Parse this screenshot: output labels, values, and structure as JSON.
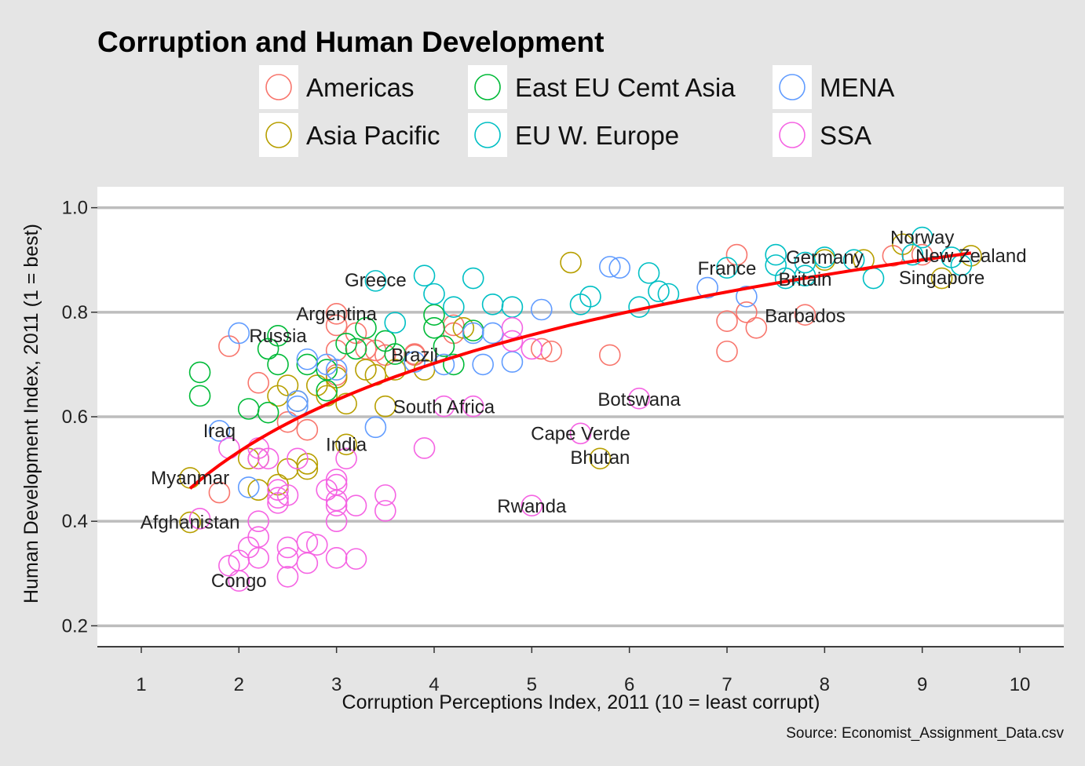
{
  "chart_data": {
    "type": "scatter",
    "title": "Corruption and Human Development",
    "xlabel": "Corruption Perceptions Index, 2011 (10 = least corrupt)",
    "ylabel": "Human Development Index, 2011 (1 = best)",
    "caption": "Source: Economist_Assignment_Data.csv",
    "xlim": [
      0.55,
      10.45
    ],
    "ylim": [
      0.16,
      1.04
    ],
    "xticks": [
      1,
      2,
      3,
      4,
      5,
      6,
      7,
      8,
      9,
      10
    ],
    "yticks": [
      0.2,
      0.4,
      0.6,
      0.8,
      1.0
    ],
    "ytick_labels": [
      "0.2",
      "0.4",
      "0.6",
      "0.8",
      "1.0"
    ],
    "grid": "horizontal",
    "legend_position": "top",
    "legend_rows": [
      [
        "Americas",
        "East EU Cemt Asia",
        "MENA"
      ],
      [
        "Asia Pacific",
        "EU W. Europe",
        "SSA"
      ]
    ],
    "colors": {
      "Americas": "#F8766D",
      "Asia Pacific": "#B79F00",
      "East EU Cemt Asia": "#00BA38",
      "EU W. Europe": "#00BFC4",
      "MENA": "#619CFF",
      "SSA": "#F564E3",
      "trend": "#FF0000"
    },
    "series": [
      {
        "name": "Americas",
        "points": [
          [
            1.9,
            0.735
          ],
          [
            2.2,
            0.665
          ],
          [
            3.0,
            0.797
          ],
          [
            3.0,
            0.775
          ],
          [
            3.2,
            0.76
          ],
          [
            3.0,
            0.727
          ],
          [
            3.0,
            0.68
          ],
          [
            2.7,
            0.575
          ],
          [
            2.5,
            0.59
          ],
          [
            1.8,
            0.455
          ],
          [
            3.4,
            0.727
          ],
          [
            3.5,
            0.718
          ],
          [
            3.8,
            0.718
          ],
          [
            3.8,
            0.72
          ],
          [
            4.2,
            0.775
          ],
          [
            4.2,
            0.76
          ],
          [
            5.1,
            0.73
          ],
          [
            5.2,
            0.725
          ],
          [
            5.8,
            0.718
          ],
          [
            7.0,
            0.783
          ],
          [
            7.0,
            0.725
          ],
          [
            7.1,
            0.91
          ],
          [
            7.3,
            0.77
          ],
          [
            7.2,
            0.8
          ],
          [
            7.8,
            0.795
          ],
          [
            8.7,
            0.908
          ],
          [
            9.0,
            0.91
          ],
          [
            3.3,
            0.73
          ]
        ]
      },
      {
        "name": "Asia Pacific",
        "points": [
          [
            1.5,
            0.483
          ],
          [
            1.5,
            0.398
          ],
          [
            2.1,
            0.52
          ],
          [
            2.2,
            0.46
          ],
          [
            2.2,
            0.52
          ],
          [
            2.4,
            0.47
          ],
          [
            2.5,
            0.5
          ],
          [
            2.5,
            0.66
          ],
          [
            2.6,
            0.63
          ],
          [
            2.7,
            0.51
          ],
          [
            2.7,
            0.5
          ],
          [
            2.8,
            0.66
          ],
          [
            2.9,
            0.64
          ],
          [
            3.0,
            0.675
          ],
          [
            3.1,
            0.625
          ],
          [
            3.1,
            0.547
          ],
          [
            3.3,
            0.69
          ],
          [
            3.4,
            0.68
          ],
          [
            3.5,
            0.62
          ],
          [
            3.6,
            0.69
          ],
          [
            3.9,
            0.69
          ],
          [
            4.3,
            0.77
          ],
          [
            5.4,
            0.895
          ],
          [
            5.7,
            0.52
          ],
          [
            8.4,
            0.9
          ],
          [
            8.8,
            0.93
          ],
          [
            9.2,
            0.865
          ],
          [
            9.5,
            0.908
          ],
          [
            8.0,
            0.9
          ],
          [
            2.4,
            0.64
          ]
        ]
      },
      {
        "name": "East EU Cemt Asia",
        "points": [
          [
            1.6,
            0.685
          ],
          [
            1.6,
            0.64
          ],
          [
            2.1,
            0.615
          ],
          [
            2.3,
            0.608
          ],
          [
            2.3,
            0.73
          ],
          [
            2.4,
            0.755
          ],
          [
            2.4,
            0.7
          ],
          [
            2.7,
            0.7
          ],
          [
            2.9,
            0.69
          ],
          [
            2.9,
            0.65
          ],
          [
            3.1,
            0.74
          ],
          [
            3.2,
            0.73
          ],
          [
            3.3,
            0.77
          ],
          [
            3.5,
            0.745
          ],
          [
            3.6,
            0.72
          ],
          [
            4.0,
            0.795
          ],
          [
            4.0,
            0.77
          ],
          [
            4.2,
            0.7
          ],
          [
            4.1,
            0.735
          ],
          [
            4.4,
            0.765
          ]
        ]
      },
      {
        "name": "EU W. Europe",
        "points": [
          [
            3.4,
            0.86
          ],
          [
            3.6,
            0.78
          ],
          [
            3.9,
            0.87
          ],
          [
            4.0,
            0.835
          ],
          [
            4.2,
            0.81
          ],
          [
            4.4,
            0.865
          ],
          [
            4.6,
            0.815
          ],
          [
            4.8,
            0.81
          ],
          [
            5.5,
            0.815
          ],
          [
            5.6,
            0.83
          ],
          [
            6.1,
            0.81
          ],
          [
            6.2,
            0.875
          ],
          [
            6.3,
            0.84
          ],
          [
            6.4,
            0.835
          ],
          [
            7.0,
            0.885
          ],
          [
            7.5,
            0.91
          ],
          [
            7.5,
            0.89
          ],
          [
            7.8,
            0.87
          ],
          [
            8.0,
            0.905
          ],
          [
            8.3,
            0.9
          ],
          [
            8.5,
            0.865
          ],
          [
            8.9,
            0.91
          ],
          [
            9.0,
            0.943
          ],
          [
            9.3,
            0.905
          ],
          [
            9.4,
            0.89
          ],
          [
            7.8,
            0.895
          ],
          [
            7.6,
            0.865
          ]
        ]
      },
      {
        "name": "MENA",
        "points": [
          [
            1.8,
            0.573
          ],
          [
            2.0,
            0.76
          ],
          [
            2.1,
            0.465
          ],
          [
            2.6,
            0.63
          ],
          [
            2.6,
            0.62
          ],
          [
            2.7,
            0.71
          ],
          [
            2.9,
            0.7
          ],
          [
            3.0,
            0.69
          ],
          [
            3.4,
            0.58
          ],
          [
            3.8,
            0.705
          ],
          [
            4.1,
            0.7
          ],
          [
            4.5,
            0.7
          ],
          [
            4.6,
            0.76
          ],
          [
            4.8,
            0.705
          ],
          [
            5.1,
            0.805
          ],
          [
            5.8,
            0.887
          ],
          [
            5.9,
            0.885
          ],
          [
            6.8,
            0.847
          ],
          [
            7.2,
            0.83
          ],
          [
            4.4,
            0.76
          ]
        ]
      },
      {
        "name": "SSA",
        "points": [
          [
            1.6,
            0.405
          ],
          [
            1.9,
            0.315
          ],
          [
            1.9,
            0.54
          ],
          [
            2.0,
            0.286
          ],
          [
            2.0,
            0.325
          ],
          [
            2.1,
            0.35
          ],
          [
            2.2,
            0.37
          ],
          [
            2.2,
            0.33
          ],
          [
            2.2,
            0.52
          ],
          [
            2.2,
            0.54
          ],
          [
            2.2,
            0.4
          ],
          [
            2.4,
            0.46
          ],
          [
            2.4,
            0.445
          ],
          [
            2.4,
            0.435
          ],
          [
            2.5,
            0.45
          ],
          [
            2.5,
            0.35
          ],
          [
            2.5,
            0.33
          ],
          [
            2.5,
            0.294
          ],
          [
            2.6,
            0.52
          ],
          [
            2.7,
            0.32
          ],
          [
            2.7,
            0.36
          ],
          [
            2.8,
            0.355
          ],
          [
            2.9,
            0.46
          ],
          [
            3.0,
            0.48
          ],
          [
            3.0,
            0.47
          ],
          [
            3.0,
            0.44
          ],
          [
            3.0,
            0.43
          ],
          [
            3.0,
            0.4
          ],
          [
            3.0,
            0.33
          ],
          [
            3.1,
            0.52
          ],
          [
            3.2,
            0.43
          ],
          [
            3.2,
            0.328
          ],
          [
            3.5,
            0.45
          ],
          [
            3.5,
            0.42
          ],
          [
            3.9,
            0.54
          ],
          [
            4.1,
            0.62
          ],
          [
            4.4,
            0.62
          ],
          [
            4.8,
            0.77
          ],
          [
            4.8,
            0.745
          ],
          [
            5.0,
            0.73
          ],
          [
            5.0,
            0.43
          ],
          [
            5.5,
            0.568
          ],
          [
            6.1,
            0.635
          ],
          [
            2.3,
            0.52
          ]
        ]
      }
    ],
    "annotations": [
      {
        "text": "Norway",
        "x": 9.0,
        "y": 0.943
      },
      {
        "text": "New Zealand",
        "x": 9.5,
        "y": 0.908
      },
      {
        "text": "Singapore",
        "x": 9.2,
        "y": 0.866
      },
      {
        "text": "Germany",
        "x": 8.0,
        "y": 0.905
      },
      {
        "text": "Britain",
        "x": 7.8,
        "y": 0.863
      },
      {
        "text": "France",
        "x": 7.0,
        "y": 0.884
      },
      {
        "text": "Barbados",
        "x": 7.8,
        "y": 0.793
      },
      {
        "text": "Greece",
        "x": 3.4,
        "y": 0.861
      },
      {
        "text": "Argentina",
        "x": 3.0,
        "y": 0.797
      },
      {
        "text": "Russia",
        "x": 2.4,
        "y": 0.755
      },
      {
        "text": "Brazil",
        "x": 3.8,
        "y": 0.718
      },
      {
        "text": "Botswana",
        "x": 6.1,
        "y": 0.633
      },
      {
        "text": "South Africa",
        "x": 4.1,
        "y": 0.619
      },
      {
        "text": "Cape Verde",
        "x": 5.5,
        "y": 0.568
      },
      {
        "text": "Bhutan",
        "x": 5.7,
        "y": 0.522
      },
      {
        "text": "Iraq",
        "x": 1.8,
        "y": 0.573
      },
      {
        "text": "India",
        "x": 3.1,
        "y": 0.547
      },
      {
        "text": "Myanmar",
        "x": 1.5,
        "y": 0.483
      },
      {
        "text": "Afghanistan",
        "x": 1.5,
        "y": 0.398
      },
      {
        "text": "Rwanda",
        "x": 5.0,
        "y": 0.429
      },
      {
        "text": "Congo",
        "x": 2.0,
        "y": 0.286
      }
    ],
    "trend_line": {
      "from": 1.5,
      "to": 9.5
    }
  }
}
